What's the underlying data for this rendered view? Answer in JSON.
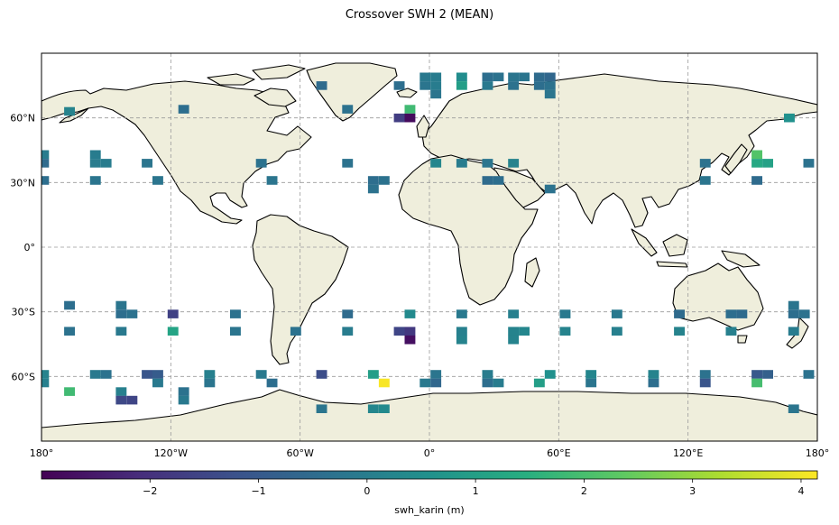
{
  "title": "Crossover SWH 2 (MEAN)",
  "map": {
    "projection": "PlateCarree",
    "lon_range": [
      -180,
      180
    ],
    "lat_range": [
      -90,
      90
    ],
    "gridlines": true,
    "land_color": "#efeedc",
    "lat_tick_labels": [
      {
        "lat": 60,
        "label": "60°N"
      },
      {
        "lat": 30,
        "label": "30°N"
      },
      {
        "lat": 0,
        "label": "0°"
      },
      {
        "lat": -30,
        "label": "30°S"
      },
      {
        "lat": -60,
        "label": "60°S"
      }
    ],
    "lon_tick_labels": [
      {
        "lon": -180,
        "label": "180°"
      },
      {
        "lon": -120,
        "label": "120°W"
      },
      {
        "lon": -60,
        "label": "60°W"
      },
      {
        "lon": 0,
        "label": "0°"
      },
      {
        "lon": 60,
        "label": "60°E"
      },
      {
        "lon": 120,
        "label": "120°E"
      },
      {
        "lon": 180,
        "label": "180°"
      }
    ]
  },
  "colorbar": {
    "label": "swh_karin (m)",
    "vmin": -3.0,
    "vmax": 4.15,
    "cmap": "viridis",
    "ticks": [
      {
        "value": -2,
        "label": "−2"
      },
      {
        "value": -1,
        "label": "−1"
      },
      {
        "value": 0,
        "label": "0"
      },
      {
        "value": 1,
        "label": "1"
      },
      {
        "value": 2,
        "label": "2"
      },
      {
        "value": 3,
        "label": "3"
      },
      {
        "value": 4,
        "label": "4"
      }
    ]
  },
  "chart_data": {
    "type": "heatmap",
    "title": "Crossover SWH 2 (MEAN)",
    "cell_size_deg": [
      5,
      4
    ],
    "value_label": "swh_karin (m)",
    "cells": [
      {
        "lon": -179,
        "lat": 43,
        "value": 0.0
      },
      {
        "lon": -179,
        "lat": 39,
        "value": -0.5
      },
      {
        "lon": -179,
        "lat": 31,
        "value": -0.4
      },
      {
        "lon": -167,
        "lat": 63,
        "value": 0.2
      },
      {
        "lon": -155,
        "lat": 43,
        "value": 0.0
      },
      {
        "lon": -155,
        "lat": 39,
        "value": 0.0
      },
      {
        "lon": -150,
        "lat": 39,
        "value": 0.0
      },
      {
        "lon": -155,
        "lat": 31,
        "value": -0.2
      },
      {
        "lon": -131,
        "lat": 39,
        "value": -0.2
      },
      {
        "lon": -126,
        "lat": 31,
        "value": -0.2
      },
      {
        "lon": -114,
        "lat": 64,
        "value": -0.4
      },
      {
        "lon": -78,
        "lat": 39,
        "value": -0.3
      },
      {
        "lon": -73,
        "lat": 31,
        "value": -0.2
      },
      {
        "lon": -50,
        "lat": 75,
        "value": -0.5
      },
      {
        "lon": -38,
        "lat": 64,
        "value": -0.3
      },
      {
        "lon": -38,
        "lat": 39,
        "value": -0.3
      },
      {
        "lon": -26,
        "lat": 31,
        "value": -0.4
      },
      {
        "lon": -21,
        "lat": 31,
        "value": -0.3
      },
      {
        "lon": -26,
        "lat": 27,
        "value": -0.3
      },
      {
        "lon": -14,
        "lat": 75,
        "value": -0.4
      },
      {
        "lon": -2,
        "lat": 75,
        "value": -0.2
      },
      {
        "lon": 3,
        "lat": 75,
        "value": 0.0
      },
      {
        "lon": -2,
        "lat": 79,
        "value": -0.1
      },
      {
        "lon": 3,
        "lat": 79,
        "value": 0.0
      },
      {
        "lon": 15,
        "lat": 79,
        "value": 0.5
      },
      {
        "lon": 15,
        "lat": 75,
        "value": 1.0
      },
      {
        "lon": -9,
        "lat": 64,
        "value": 1.9
      },
      {
        "lon": -14,
        "lat": 60,
        "value": -1.7
      },
      {
        "lon": -9,
        "lat": 60,
        "value": -2.8
      },
      {
        "lon": 3,
        "lat": 71,
        "value": -0.2
      },
      {
        "lon": 27,
        "lat": 79,
        "value": -0.4
      },
      {
        "lon": 32,
        "lat": 79,
        "value": -0.3
      },
      {
        "lon": 27,
        "lat": 75,
        "value": -0.1
      },
      {
        "lon": 39,
        "lat": 79,
        "value": -0.2
      },
      {
        "lon": 39,
        "lat": 75,
        "value": -0.3
      },
      {
        "lon": 44,
        "lat": 79,
        "value": -0.2
      },
      {
        "lon": 51,
        "lat": 79,
        "value": -0.5
      },
      {
        "lon": 56,
        "lat": 79,
        "value": -0.6
      },
      {
        "lon": 51,
        "lat": 75,
        "value": -0.4
      },
      {
        "lon": 56,
        "lat": 75,
        "value": -0.3
      },
      {
        "lon": 56,
        "lat": 71,
        "value": -0.2
      },
      {
        "lon": 3,
        "lat": 39,
        "value": 0.3
      },
      {
        "lon": 15,
        "lat": 39,
        "value": 0.0
      },
      {
        "lon": 27,
        "lat": 39,
        "value": -0.2
      },
      {
        "lon": 27,
        "lat": 31,
        "value": -0.5
      },
      {
        "lon": 32,
        "lat": 31,
        "value": -0.4
      },
      {
        "lon": 39,
        "lat": 39,
        "value": 0.2
      },
      {
        "lon": 56,
        "lat": 27,
        "value": -0.3
      },
      {
        "lon": 128,
        "lat": 39,
        "value": -0.3
      },
      {
        "lon": 128,
        "lat": 31,
        "value": -0.2
      },
      {
        "lon": 152,
        "lat": 43,
        "value": 2.2
      },
      {
        "lon": 152,
        "lat": 39,
        "value": 1.3
      },
      {
        "lon": 157,
        "lat": 39,
        "value": 1.1
      },
      {
        "lon": 152,
        "lat": 31,
        "value": -0.5
      },
      {
        "lon": 176,
        "lat": 39,
        "value": -0.3
      },
      {
        "lon": 167,
        "lat": 60,
        "value": 0.6
      },
      {
        "lon": -167,
        "lat": -27,
        "value": -0.4
      },
      {
        "lon": -167,
        "lat": -39,
        "value": -0.3
      },
      {
        "lon": -143,
        "lat": -27,
        "value": -0.2
      },
      {
        "lon": -143,
        "lat": -31,
        "value": -0.4
      },
      {
        "lon": -138,
        "lat": -31,
        "value": -0.3
      },
      {
        "lon": -143,
        "lat": -39,
        "value": -0.1
      },
      {
        "lon": -119,
        "lat": -31,
        "value": -1.6
      },
      {
        "lon": -119,
        "lat": -39,
        "value": 1.2
      },
      {
        "lon": -90,
        "lat": -31,
        "value": -0.3
      },
      {
        "lon": -90,
        "lat": -39,
        "value": -0.2
      },
      {
        "lon": -62,
        "lat": -39,
        "value": -0.3
      },
      {
        "lon": -38,
        "lat": -31,
        "value": -0.5
      },
      {
        "lon": -38,
        "lat": -39,
        "value": 0.0
      },
      {
        "lon": -14,
        "lat": -39,
        "value": -1.5
      },
      {
        "lon": -9,
        "lat": -39,
        "value": -1.8
      },
      {
        "lon": -9,
        "lat": -43,
        "value": -2.7
      },
      {
        "lon": -9,
        "lat": -31,
        "value": 0.4
      },
      {
        "lon": 15,
        "lat": -31,
        "value": -0.1
      },
      {
        "lon": 15,
        "lat": -39,
        "value": 0.1
      },
      {
        "lon": 15,
        "lat": -43,
        "value": 0.2
      },
      {
        "lon": 39,
        "lat": -31,
        "value": 0.1
      },
      {
        "lon": 39,
        "lat": -39,
        "value": 0.2
      },
      {
        "lon": 44,
        "lat": -39,
        "value": 0.3
      },
      {
        "lon": 39,
        "lat": -43,
        "value": 0.2
      },
      {
        "lon": 63,
        "lat": -31,
        "value": -0.1
      },
      {
        "lon": 63,
        "lat": -39,
        "value": 0.2
      },
      {
        "lon": 87,
        "lat": -31,
        "value": -0.1
      },
      {
        "lon": 87,
        "lat": -39,
        "value": 0.1
      },
      {
        "lon": 116,
        "lat": -31,
        "value": -0.5
      },
      {
        "lon": 116,
        "lat": -39,
        "value": 0.2
      },
      {
        "lon": 140,
        "lat": -31,
        "value": -0.4
      },
      {
        "lon": 145,
        "lat": -31,
        "value": -0.5
      },
      {
        "lon": 140,
        "lat": -39,
        "value": 0.1
      },
      {
        "lon": 169,
        "lat": -27,
        "value": -0.2
      },
      {
        "lon": 169,
        "lat": -31,
        "value": -0.4
      },
      {
        "lon": 174,
        "lat": -31,
        "value": -0.3
      },
      {
        "lon": 169,
        "lat": -39,
        "value": 0.0
      },
      {
        "lon": -179,
        "lat": -59,
        "value": 0.2
      },
      {
        "lon": -179,
        "lat": -63,
        "value": 0.1
      },
      {
        "lon": -167,
        "lat": -67,
        "value": 1.9
      },
      {
        "lon": -155,
        "lat": -59,
        "value": -0.1
      },
      {
        "lon": -150,
        "lat": -59,
        "value": -0.3
      },
      {
        "lon": -143,
        "lat": -67,
        "value": 0.1
      },
      {
        "lon": -143,
        "lat": -71,
        "value": -1.4
      },
      {
        "lon": -138,
        "lat": -71,
        "value": -1.5
      },
      {
        "lon": -131,
        "lat": -59,
        "value": -1.1
      },
      {
        "lon": -126,
        "lat": -59,
        "value": -0.9
      },
      {
        "lon": -126,
        "lat": -63,
        "value": -0.1
      },
      {
        "lon": -114,
        "lat": -67,
        "value": -0.3
      },
      {
        "lon": -114,
        "lat": -71,
        "value": -0.1
      },
      {
        "lon": -102,
        "lat": -59,
        "value": 0.1
      },
      {
        "lon": -102,
        "lat": -63,
        "value": -0.2
      },
      {
        "lon": -78,
        "lat": -59,
        "value": -0.1
      },
      {
        "lon": -73,
        "lat": -63,
        "value": -0.4
      },
      {
        "lon": -50,
        "lat": -59,
        "value": -1.3
      },
      {
        "lon": -50,
        "lat": -75,
        "value": -0.2
      },
      {
        "lon": -26,
        "lat": -59,
        "value": 1.0
      },
      {
        "lon": -26,
        "lat": -75,
        "value": 0.3
      },
      {
        "lon": -21,
        "lat": -75,
        "value": 0.4
      },
      {
        "lon": -21,
        "lat": -63,
        "value": 4.1
      },
      {
        "lon": -2,
        "lat": -63,
        "value": -0.1
      },
      {
        "lon": 3,
        "lat": -59,
        "value": -0.2
      },
      {
        "lon": 3,
        "lat": -63,
        "value": -0.6
      },
      {
        "lon": 27,
        "lat": -59,
        "value": 0.0
      },
      {
        "lon": 27,
        "lat": -63,
        "value": -0.4
      },
      {
        "lon": 32,
        "lat": -63,
        "value": 0.0
      },
      {
        "lon": 51,
        "lat": -63,
        "value": 1.0
      },
      {
        "lon": 56,
        "lat": -59,
        "value": 0.6
      },
      {
        "lon": 75,
        "lat": -59,
        "value": 0.3
      },
      {
        "lon": 75,
        "lat": -63,
        "value": -0.2
      },
      {
        "lon": 104,
        "lat": -63,
        "value": -0.4
      },
      {
        "lon": 104,
        "lat": -59,
        "value": 0.2
      },
      {
        "lon": 128,
        "lat": -59,
        "value": -0.3
      },
      {
        "lon": 128,
        "lat": -63,
        "value": -1.1
      },
      {
        "lon": 152,
        "lat": -59,
        "value": -1.0
      },
      {
        "lon": 157,
        "lat": -59,
        "value": -0.8
      },
      {
        "lon": 152,
        "lat": -63,
        "value": 2.0
      },
      {
        "lon": 176,
        "lat": -59,
        "value": -0.3
      },
      {
        "lon": 169,
        "lat": -75,
        "value": -0.2
      }
    ]
  }
}
